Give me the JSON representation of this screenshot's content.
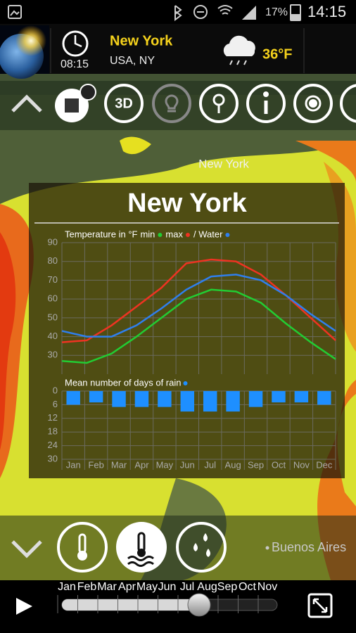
{
  "status_bar": {
    "battery": "17%",
    "time": "14:15"
  },
  "header": {
    "clock_time": "08:15",
    "city": "New York",
    "region": "USA, NY",
    "temperature": "36°F"
  },
  "toolbar": {
    "button_3d": "3D"
  },
  "map_labels": [
    "New York",
    "Buenos Aires"
  ],
  "panel_title": "New York",
  "chart_data": [
    {
      "type": "line",
      "title": "Temperature in °F",
      "ylim": [
        20,
        90
      ],
      "yticks": [
        30,
        40,
        50,
        60,
        70,
        80,
        90
      ],
      "grid": true,
      "series": [
        {
          "name": "min",
          "color": "#22cc33",
          "values": [
            27,
            26,
            31,
            40,
            50,
            60,
            65,
            64,
            58,
            47,
            37,
            28
          ]
        },
        {
          "name": "max",
          "color": "#ee3322",
          "values": [
            37,
            38,
            46,
            56,
            66,
            79,
            81,
            80,
            73,
            62,
            50,
            38
          ]
        },
        {
          "name": "/ Water",
          "color": "#2f7fee",
          "values": [
            43,
            40,
            40,
            46,
            55,
            65,
            72,
            73,
            70,
            62,
            52,
            43
          ]
        }
      ]
    },
    {
      "type": "bar",
      "title": "Mean number of days of rain",
      "inverted": true,
      "grid": true,
      "categories": [
        "Jan",
        "Feb",
        "Mar",
        "Apr",
        "May",
        "Jun",
        "Jul",
        "Aug",
        "Sep",
        "Oct",
        "Nov",
        "Dec"
      ],
      "ylim": [
        0,
        30
      ],
      "yticks": [
        0,
        6,
        12,
        18,
        24,
        30
      ],
      "series": [
        {
          "color": "#1e8fff",
          "values": [
            6,
            5,
            7,
            7,
            7,
            9,
            9,
            9,
            7,
            5,
            5,
            6
          ]
        }
      ]
    }
  ],
  "timeline": {
    "months": [
      "Jan",
      "Feb",
      "Mar",
      "Apr",
      "May",
      "Jun",
      "Jul",
      "Aug",
      "Sep",
      "Oct",
      "Nov"
    ]
  }
}
